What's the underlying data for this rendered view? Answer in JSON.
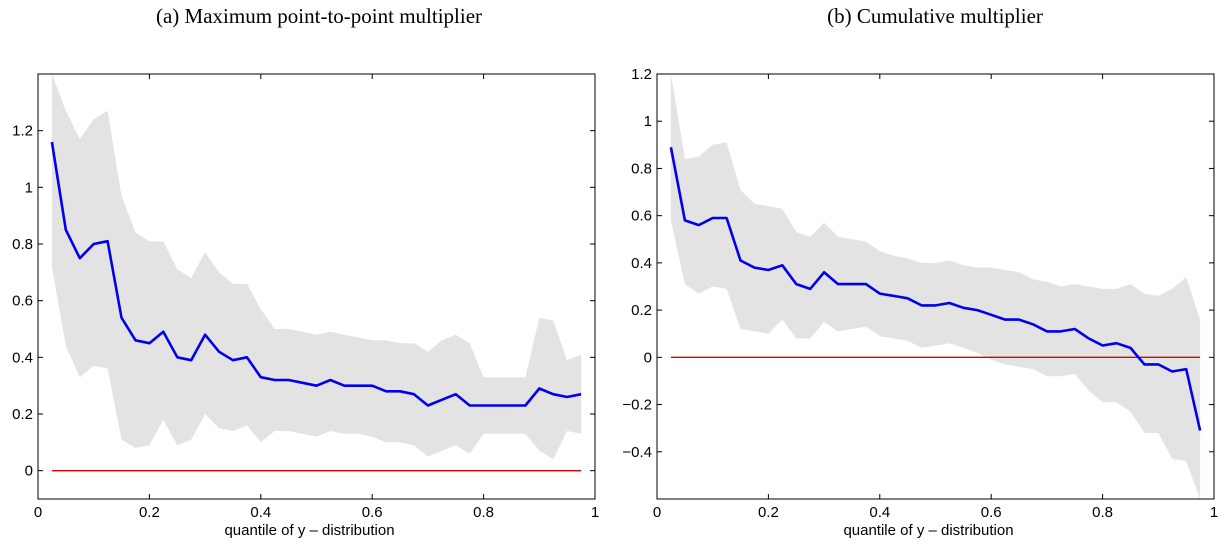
{
  "panels": {
    "a": {
      "caption": "(a) Maximum point-to-point multiplier"
    },
    "b": {
      "caption": "(b) Cumulative multiplier"
    }
  },
  "colors": {
    "line": "#0000ee",
    "band": "#e3e3e3",
    "zero": "#dd0000",
    "axis": "#000000"
  },
  "chart_data": [
    {
      "type": "line",
      "title": "(a) Maximum point-to-point multiplier",
      "xlabel": "quantile of y – distribution",
      "ylabel": "",
      "xlim": [
        0,
        1
      ],
      "ylim": [
        -0.1,
        1.4
      ],
      "xticks": [
        0,
        0.2,
        0.4,
        0.6,
        0.8,
        1
      ],
      "xtick_labels": [
        "0",
        "0.2",
        "0.4",
        "0.6",
        "0.8",
        "1"
      ],
      "yticks": [
        0,
        0.2,
        0.4,
        0.6,
        0.8,
        1,
        1.2
      ],
      "ytick_labels": [
        "0",
        "0.2",
        "0.4",
        "0.6",
        "0.8",
        "1",
        "1.2"
      ],
      "grid": false,
      "x": [
        0.025,
        0.05,
        0.075,
        0.1,
        0.125,
        0.15,
        0.175,
        0.2,
        0.225,
        0.25,
        0.275,
        0.3,
        0.325,
        0.35,
        0.375,
        0.4,
        0.425,
        0.45,
        0.475,
        0.5,
        0.525,
        0.55,
        0.575,
        0.6,
        0.625,
        0.65,
        0.675,
        0.7,
        0.725,
        0.75,
        0.775,
        0.8,
        0.825,
        0.85,
        0.875,
        0.9,
        0.925,
        0.95,
        0.975
      ],
      "series": [
        {
          "values": [
            1.16,
            0.85,
            0.75,
            0.8,
            0.81,
            0.54,
            0.46,
            0.45,
            0.49,
            0.4,
            0.39,
            0.48,
            0.42,
            0.39,
            0.4,
            0.33,
            0.32,
            0.32,
            0.31,
            0.3,
            0.32,
            0.3,
            0.3,
            0.3,
            0.28,
            0.28,
            0.27,
            0.23,
            0.25,
            0.27,
            0.23,
            0.23,
            0.23,
            0.23,
            0.23,
            0.29,
            0.27,
            0.26,
            0.27
          ]
        }
      ],
      "band_upper": [
        1.42,
        1.27,
        1.17,
        1.24,
        1.27,
        0.97,
        0.84,
        0.81,
        0.81,
        0.71,
        0.68,
        0.77,
        0.7,
        0.66,
        0.66,
        0.57,
        0.5,
        0.5,
        0.49,
        0.48,
        0.49,
        0.48,
        0.47,
        0.46,
        0.46,
        0.45,
        0.45,
        0.42,
        0.46,
        0.48,
        0.45,
        0.33,
        0.33,
        0.33,
        0.33,
        0.54,
        0.53,
        0.39,
        0.41
      ],
      "band_lower": [
        0.72,
        0.44,
        0.33,
        0.37,
        0.36,
        0.11,
        0.08,
        0.09,
        0.18,
        0.09,
        0.11,
        0.2,
        0.15,
        0.14,
        0.16,
        0.1,
        0.14,
        0.14,
        0.13,
        0.12,
        0.14,
        0.13,
        0.13,
        0.12,
        0.1,
        0.1,
        0.09,
        0.05,
        0.07,
        0.09,
        0.06,
        0.13,
        0.13,
        0.13,
        0.13,
        0.07,
        0.04,
        0.14,
        0.13
      ],
      "reference_line": 0
    },
    {
      "type": "line",
      "title": "(b) Cumulative multiplier",
      "xlabel": "quantile of y – distribution",
      "ylabel": "",
      "xlim": [
        0,
        1
      ],
      "ylim": [
        -0.6,
        1.2
      ],
      "xticks": [
        0,
        0.2,
        0.4,
        0.6,
        0.8,
        1
      ],
      "xtick_labels": [
        "0",
        "0.2",
        "0.4",
        "0.6",
        "0.8",
        "1"
      ],
      "yticks": [
        -0.4,
        -0.2,
        0,
        0.2,
        0.4,
        0.6,
        0.8,
        1,
        1.2
      ],
      "ytick_labels": [
        "−0.4",
        "−0.2",
        "0",
        "0.2",
        "0.4",
        "0.6",
        "0.8",
        "1",
        "1.2"
      ],
      "grid": false,
      "x": [
        0.025,
        0.05,
        0.075,
        0.1,
        0.125,
        0.15,
        0.175,
        0.2,
        0.225,
        0.25,
        0.275,
        0.3,
        0.325,
        0.35,
        0.375,
        0.4,
        0.425,
        0.45,
        0.475,
        0.5,
        0.525,
        0.55,
        0.575,
        0.6,
        0.625,
        0.65,
        0.675,
        0.7,
        0.725,
        0.75,
        0.775,
        0.8,
        0.825,
        0.85,
        0.875,
        0.9,
        0.925,
        0.95,
        0.975
      ],
      "series": [
        {
          "values": [
            0.89,
            0.58,
            0.56,
            0.59,
            0.59,
            0.41,
            0.38,
            0.37,
            0.39,
            0.31,
            0.29,
            0.36,
            0.31,
            0.31,
            0.31,
            0.27,
            0.26,
            0.25,
            0.22,
            0.22,
            0.23,
            0.21,
            0.2,
            0.18,
            0.16,
            0.16,
            0.14,
            0.11,
            0.11,
            0.12,
            0.08,
            0.05,
            0.06,
            0.04,
            -0.03,
            -0.03,
            -0.06,
            -0.05,
            -0.31
          ]
        }
      ],
      "band_upper": [
        1.2,
        0.84,
        0.85,
        0.9,
        0.91,
        0.71,
        0.65,
        0.64,
        0.63,
        0.53,
        0.51,
        0.57,
        0.51,
        0.5,
        0.49,
        0.45,
        0.43,
        0.42,
        0.4,
        0.4,
        0.41,
        0.39,
        0.38,
        0.38,
        0.37,
        0.36,
        0.33,
        0.32,
        0.3,
        0.31,
        0.3,
        0.29,
        0.29,
        0.31,
        0.27,
        0.26,
        0.29,
        0.34,
        0.16
      ],
      "band_lower": [
        0.58,
        0.31,
        0.27,
        0.3,
        0.29,
        0.12,
        0.11,
        0.1,
        0.16,
        0.08,
        0.08,
        0.15,
        0.11,
        0.12,
        0.13,
        0.09,
        0.08,
        0.07,
        0.04,
        0.05,
        0.06,
        0.04,
        0.02,
        -0.01,
        -0.03,
        -0.04,
        -0.05,
        -0.08,
        -0.08,
        -0.07,
        -0.14,
        -0.19,
        -0.19,
        -0.23,
        -0.32,
        -0.32,
        -0.43,
        -0.44,
        -0.62
      ],
      "reference_line": 0
    }
  ]
}
